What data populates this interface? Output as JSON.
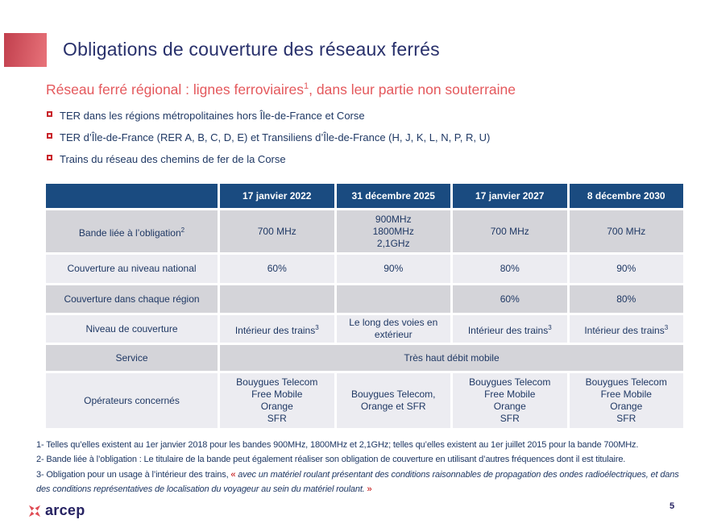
{
  "slide": {
    "title": "Obligations de couverture des réseaux ferrés",
    "subtitle": {
      "before": "Réseau ferré régional : lignes ferroviaires",
      "sup": "1",
      "after": ", dans leur partie non souterraine"
    },
    "bullets": [
      "TER dans les régions métropolitaines hors Île-de-France et Corse",
      "TER d’Île-de-France (RER A, B, C, D, E) et Transiliens d’Île-de-France (H, J, K, L, N, P, R, U)",
      "Trains du réseau des chemins de fer de la Corse"
    ],
    "page_number": "5"
  },
  "table": {
    "column_headers": [
      "",
      "17 janvier 2022",
      "31 décembre 2025",
      "17 janvier 2027",
      "8 décembre 2030"
    ],
    "rows": [
      {
        "label": "Bande liée à l’obligation",
        "label_sup": "2",
        "cells": [
          {
            "lines": [
              "700 MHz"
            ]
          },
          {
            "lines": [
              "900MHz",
              "1800MHz",
              "2,1GHz"
            ]
          },
          {
            "lines": [
              "700 MHz"
            ]
          },
          {
            "lines": [
              "700 MHz"
            ]
          }
        ]
      },
      {
        "label": "Couverture au niveau national",
        "cells": [
          {
            "lines": [
              "60%"
            ]
          },
          {
            "lines": [
              "90%"
            ]
          },
          {
            "lines": [
              "80%"
            ]
          },
          {
            "lines": [
              "90%"
            ]
          }
        ]
      },
      {
        "label": "Couverture dans chaque région",
        "cells": [
          {
            "lines": []
          },
          {
            "lines": []
          },
          {
            "lines": [
              "60%"
            ]
          },
          {
            "lines": [
              "80%"
            ]
          }
        ]
      },
      {
        "label": "Niveau de couverture",
        "cells": [
          {
            "lines": [
              "Intérieur des trains"
            ],
            "sup": "3"
          },
          {
            "lines": [
              "Le long des voies en extérieur"
            ]
          },
          {
            "lines": [
              "Intérieur des trains"
            ],
            "sup": "3"
          },
          {
            "lines": [
              "Intérieur des trains"
            ],
            "sup": "3"
          }
        ]
      },
      {
        "label": "Service",
        "merged": {
          "lines": [
            "Très haut débit mobile"
          ]
        }
      },
      {
        "label": "Opérateurs concernés",
        "cells": [
          {
            "lines": [
              "Bouygues Telecom",
              "Free Mobile",
              "Orange",
              "SFR"
            ]
          },
          {
            "lines": [
              "Bouygues Telecom,",
              "Orange et SFR"
            ]
          },
          {
            "lines": [
              "Bouygues Telecom",
              "Free Mobile",
              "Orange",
              "SFR"
            ]
          },
          {
            "lines": [
              "Bouygues Telecom",
              "Free Mobile",
              "Orange",
              "SFR"
            ]
          }
        ]
      }
    ]
  },
  "footnotes": [
    {
      "text": "1- Telles qu’elles existent au 1er janvier 2018 pour les bandes 900MHz, 1800MHz et 2,1GHz; telles qu’elles existent au 1er juillet 2015 pour la bande 700MHz."
    },
    {
      "text": "2- Bande liée à l’obligation : Le titulaire de la bande peut également réaliser son obligation de couverture en utilisant d’autres fréquences dont il est titulaire."
    },
    {
      "text": "3- Obligation pour un usage à l’intérieur des trains, ",
      "quote_open": "« ",
      "quote_italic": "avec un matériel roulant présentant des conditions raisonnables de propagation des ondes radioélectriques, et dans des conditions représentatives de localisation du voyageur au sein du matériel roulant.",
      "quote_close": " »"
    }
  ],
  "footer": {
    "logo_text": "arcep"
  },
  "colors": {
    "header_bg": "#1A4B80",
    "row_dark": "#D4D4D9",
    "row_light": "#ECECF1",
    "body_navy": "#1F3864",
    "title_navy": "#28306B",
    "subtitle_red": "#E4585C",
    "bullet_red": "#C9252B",
    "quote_red": "#C00000",
    "accent_red_dark": "#C13F4D",
    "accent_red_light": "#E8737A",
    "arcep_red": "#DF4B54",
    "arcep_navy": "#262262"
  }
}
